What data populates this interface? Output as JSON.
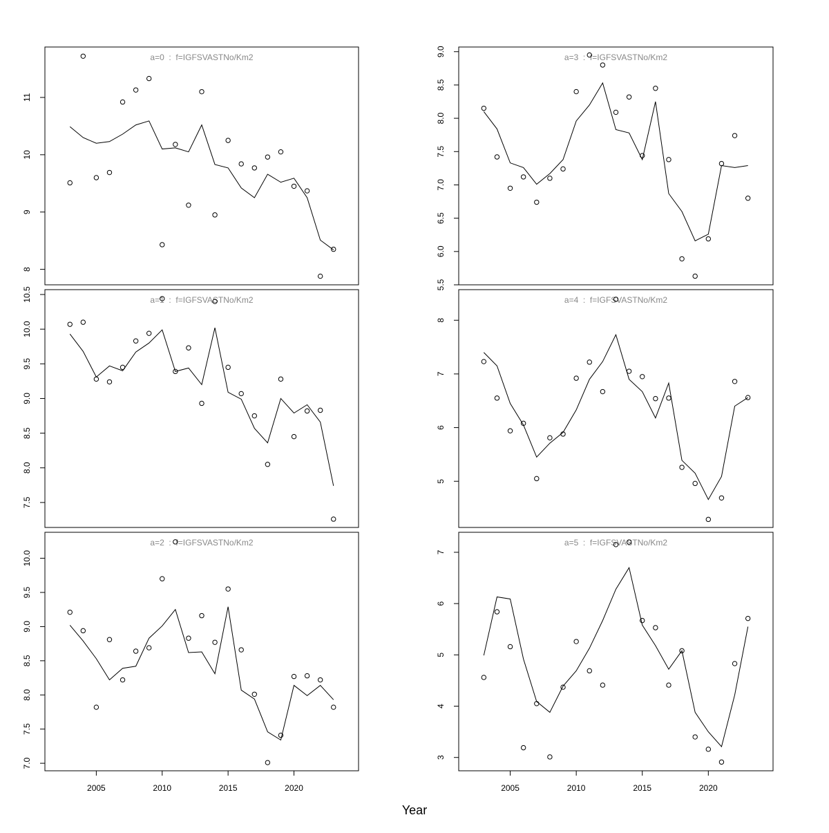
{
  "xlabel": "Year",
  "chart_data": [
    {
      "type": "line",
      "title": "a=0  :  f=IGFSVASTNo/Km2",
      "color": "#000000",
      "x": [
        2003,
        2004,
        2005,
        2006,
        2007,
        2008,
        2009,
        2010,
        2011,
        2012,
        2013,
        2014,
        2015,
        2016,
        2017,
        2018,
        2019,
        2020,
        2021,
        2022,
        2023
      ],
      "xlim": [
        2001.1,
        2024.9
      ],
      "ylim": [
        7.73,
        11.88
      ],
      "yticks": [
        8,
        9,
        10,
        11
      ],
      "series": [
        {
          "style": "points",
          "values": [
            9.51,
            11.72,
            9.6,
            9.69,
            10.92,
            11.13,
            11.33,
            8.43,
            10.18,
            9.12,
            11.1,
            8.95,
            10.25,
            9.84,
            9.77,
            9.96,
            10.05,
            9.45,
            9.37,
            7.88,
            8.35
          ]
        },
        {
          "style": "line",
          "values": [
            10.49,
            10.3,
            10.2,
            10.23,
            10.36,
            10.52,
            10.59,
            10.1,
            10.12,
            10.05,
            10.52,
            9.83,
            9.77,
            9.42,
            9.25,
            9.66,
            9.52,
            9.59,
            9.25,
            8.51,
            8.34
          ]
        }
      ]
    },
    {
      "type": "line",
      "title": "a=3  :  f=IGFSVASTNo/Km2",
      "color": "#000000",
      "x": [
        2003,
        2004,
        2005,
        2006,
        2007,
        2008,
        2009,
        2010,
        2011,
        2012,
        2013,
        2014,
        2015,
        2016,
        2017,
        2018,
        2019,
        2020,
        2021,
        2022,
        2023
      ],
      "xlim": [
        2001.1,
        2024.9
      ],
      "ylim": [
        5.5,
        9.07
      ],
      "yticks": [
        {
          "value": 5.5,
          "label": "5.5"
        },
        {
          "value": 6,
          "label": "6.0"
        },
        {
          "value": 6.5,
          "label": "6.5"
        },
        {
          "value": 7,
          "label": "7.0"
        },
        {
          "value": 7.5,
          "label": "7.5"
        },
        {
          "value": 8,
          "label": "8.0"
        },
        {
          "value": 8.5,
          "label": "8.5"
        },
        {
          "value": 9,
          "label": "9.0"
        }
      ],
      "series": [
        {
          "style": "points",
          "values": [
            8.15,
            7.42,
            6.95,
            7.12,
            6.74,
            7.1,
            7.24,
            8.4,
            8.95,
            8.8,
            8.09,
            8.32,
            7.44,
            8.45,
            7.38,
            5.89,
            5.63,
            6.19,
            7.32,
            7.74,
            6.8
          ]
        },
        {
          "style": "line",
          "values": [
            8.1,
            7.84,
            7.33,
            7.26,
            7.01,
            7.17,
            7.38,
            7.96,
            8.2,
            8.53,
            7.83,
            7.78,
            7.38,
            8.25,
            6.87,
            6.6,
            6.16,
            6.26,
            7.29,
            7.26,
            7.29
          ]
        }
      ]
    },
    {
      "type": "line",
      "title": "a=1  :  f=IGFSVASTNo/Km2",
      "color": "#000000",
      "x": [
        2003,
        2004,
        2005,
        2006,
        2007,
        2008,
        2009,
        2010,
        2011,
        2012,
        2013,
        2014,
        2015,
        2016,
        2017,
        2018,
        2019,
        2020,
        2021,
        2022,
        2023
      ],
      "xlim": [
        2001.1,
        2024.9
      ],
      "ylim": [
        7.14,
        10.57
      ],
      "yticks": [
        7.5,
        {
          "value": 8,
          "label": "8.0"
        },
        8.5,
        {
          "value": 9,
          "label": "9.0"
        },
        9.5,
        {
          "value": 10,
          "label": "10.0"
        },
        10.5
      ],
      "series": [
        {
          "style": "points",
          "values": [
            10.07,
            10.1,
            9.28,
            9.24,
            9.45,
            9.83,
            9.94,
            10.44,
            9.39,
            9.73,
            8.93,
            10.4,
            9.45,
            9.07,
            8.75,
            8.05,
            9.28,
            8.45,
            8.82,
            8.83,
            7.26
          ]
        },
        {
          "style": "line",
          "values": [
            9.93,
            9.68,
            9.31,
            9.47,
            9.4,
            9.67,
            9.8,
            9.99,
            9.39,
            9.44,
            9.2,
            10.02,
            9.09,
            8.99,
            8.57,
            8.36,
            9.0,
            8.79,
            8.91,
            8.66,
            7.74
          ]
        }
      ]
    },
    {
      "type": "line",
      "title": "a=4  :  f=IGFSVASTNo/Km2",
      "color": "#000000",
      "x": [
        2003,
        2004,
        2005,
        2006,
        2007,
        2008,
        2009,
        2010,
        2011,
        2012,
        2013,
        2014,
        2015,
        2016,
        2017,
        2018,
        2019,
        2020,
        2021,
        2022,
        2023
      ],
      "xlim": [
        2001.1,
        2024.9
      ],
      "ylim": [
        4.14,
        8.57
      ],
      "yticks": [
        5,
        6,
        7,
        8
      ],
      "series": [
        {
          "style": "points",
          "values": [
            7.23,
            6.55,
            5.94,
            6.08,
            5.05,
            5.81,
            5.88,
            6.92,
            7.22,
            6.67,
            8.39,
            7.05,
            6.95,
            6.54,
            6.55,
            5.26,
            4.96,
            4.29,
            4.69,
            6.86,
            6.56
          ]
        },
        {
          "style": "line",
          "values": [
            7.4,
            7.15,
            6.45,
            6.05,
            5.45,
            5.71,
            5.91,
            6.33,
            6.9,
            7.23,
            7.73,
            6.9,
            6.67,
            6.18,
            6.83,
            5.39,
            5.15,
            4.66,
            5.09,
            6.4,
            6.56
          ]
        }
      ]
    },
    {
      "type": "line",
      "title": "a=2  :  f=IGFSVASTNo/Km2",
      "color": "#000000",
      "x": [
        2003,
        2004,
        2005,
        2006,
        2007,
        2008,
        2009,
        2010,
        2011,
        2012,
        2013,
        2014,
        2015,
        2016,
        2017,
        2018,
        2019,
        2020,
        2021,
        2022,
        2023
      ],
      "xlim": [
        2001.1,
        2024.9
      ],
      "xticks": [
        2005,
        2010,
        2015,
        2020
      ],
      "ylim": [
        6.89,
        10.38
      ],
      "yticks": [
        {
          "value": 7,
          "label": "7.0"
        },
        7.5,
        {
          "value": 8,
          "label": "8.0"
        },
        8.5,
        {
          "value": 9,
          "label": "9.0"
        },
        9.5,
        {
          "value": 10,
          "label": "10.0"
        }
      ],
      "series": [
        {
          "style": "points",
          "values": [
            9.21,
            8.94,
            7.82,
            8.81,
            8.22,
            8.64,
            8.69,
            9.7,
            10.24,
            8.83,
            9.16,
            8.77,
            9.55,
            8.66,
            8.01,
            7.01,
            7.41,
            8.27,
            8.28,
            8.22,
            7.82
          ]
        },
        {
          "style": "line",
          "values": [
            9.02,
            8.79,
            8.53,
            8.22,
            8.39,
            8.42,
            8.83,
            9.01,
            9.25,
            8.62,
            8.63,
            8.31,
            9.29,
            8.07,
            7.94,
            7.46,
            7.34,
            8.14,
            7.99,
            8.14,
            7.93
          ]
        }
      ]
    },
    {
      "type": "line",
      "title": "a=5  :  f=IGFSVASTNo/Km2",
      "color": "#000000",
      "x": [
        2003,
        2004,
        2005,
        2006,
        2007,
        2008,
        2009,
        2010,
        2011,
        2012,
        2013,
        2014,
        2015,
        2016,
        2017,
        2018,
        2019,
        2020,
        2021,
        2022,
        2023
      ],
      "xlim": [
        2001.1,
        2024.9
      ],
      "xticks": [
        2005,
        2010,
        2015,
        2020
      ],
      "ylim": [
        2.74,
        7.39
      ],
      "yticks": [
        3,
        4,
        5,
        6,
        7
      ],
      "series": [
        {
          "style": "points",
          "values": [
            4.56,
            5.84,
            5.16,
            3.19,
            4.05,
            3.01,
            4.37,
            5.26,
            4.69,
            4.41,
            7.15,
            7.2,
            5.67,
            5.53,
            4.41,
            5.08,
            3.4,
            3.16,
            2.91,
            4.83,
            5.71
          ]
        },
        {
          "style": "line",
          "values": [
            4.99,
            6.13,
            6.09,
            4.92,
            4.09,
            3.88,
            4.39,
            4.69,
            5.13,
            5.67,
            6.28,
            6.7,
            5.58,
            5.18,
            4.72,
            5.08,
            3.88,
            3.5,
            3.21,
            4.22,
            5.55
          ]
        }
      ]
    }
  ]
}
